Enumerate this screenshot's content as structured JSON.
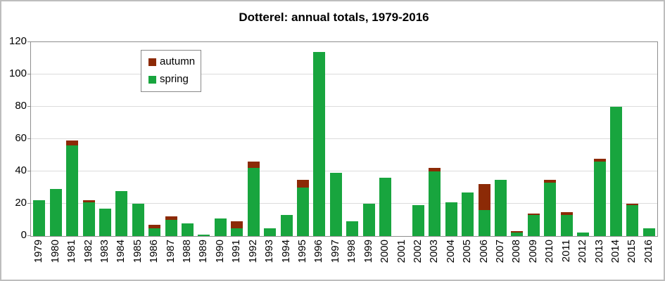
{
  "title": "Dotterel: annual totals, 1979-2016",
  "legend": {
    "items": [
      {
        "label": "autumn",
        "color": "#8c2a06"
      },
      {
        "label": "spring",
        "color": "#18a53e"
      }
    ]
  },
  "colors": {
    "spring": "#18a53e",
    "autumn": "#8c2a06",
    "gridline": "#dcdcdc",
    "axis": "#8e8e8e",
    "frame": "#bdbdbd",
    "text": "#000000"
  },
  "chart_data": {
    "type": "bar",
    "stacked": true,
    "title": "Dotterel: annual totals, 1979-2016",
    "grid": true,
    "legend_position": "top-left-inside",
    "ylim": [
      0,
      120
    ],
    "yticks": [
      0,
      20,
      40,
      60,
      80,
      100,
      120
    ],
    "categories": [
      "1979",
      "1980",
      "1981",
      "1982",
      "1983",
      "1984",
      "1985",
      "1986",
      "1987",
      "1988",
      "1989",
      "1990",
      "1991",
      "1992",
      "1993",
      "1994",
      "1995",
      "1996",
      "1997",
      "1998",
      "1999",
      "2000",
      "2001",
      "2002",
      "2003",
      "2004",
      "2005",
      "2006",
      "2007",
      "2008",
      "2009",
      "2010",
      "2011",
      "2012",
      "2013",
      "2014",
      "2015",
      "2016"
    ],
    "series": [
      {
        "name": "spring",
        "color": "#18a53e",
        "values": [
          22,
          29,
          56,
          21,
          17,
          28,
          20,
          5,
          10,
          8,
          1,
          11,
          5,
          42,
          5,
          13,
          30,
          114,
          39,
          9,
          20,
          36,
          0,
          19,
          40,
          21,
          27,
          16,
          35,
          2,
          13,
          33,
          13,
          2,
          46,
          80,
          19,
          5
        ]
      },
      {
        "name": "autumn",
        "color": "#8c2a06",
        "values": [
          0,
          0,
          3,
          1,
          0,
          0,
          0,
          2,
          2,
          0,
          0,
          0,
          4,
          4,
          0,
          0,
          5,
          0,
          0,
          0,
          0,
          0,
          0,
          0,
          2,
          0,
          0,
          16,
          0,
          1,
          1,
          2,
          2,
          0,
          2,
          0,
          1,
          0
        ]
      }
    ],
    "totals": [
      22,
      29,
      59,
      22,
      17,
      28,
      20,
      7,
      12,
      8,
      1,
      11,
      9,
      46,
      5,
      13,
      35,
      114,
      39,
      9,
      20,
      36,
      0,
      19,
      42,
      21,
      27,
      32,
      35,
      3,
      14,
      35,
      15,
      2,
      48,
      80,
      20,
      5
    ]
  }
}
